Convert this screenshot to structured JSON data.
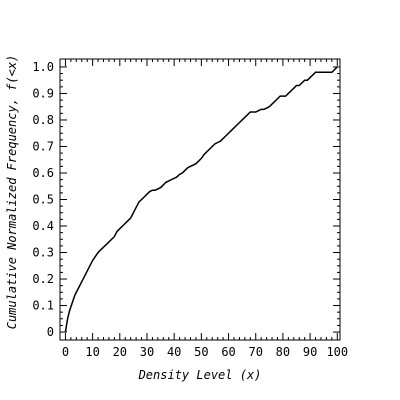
{
  "chart_data": {
    "type": "line",
    "xlabel": "Density Level (x)",
    "ylabel": "Cumulative Normalized Frequency, f(<x)",
    "xlim": [
      -2,
      101
    ],
    "ylim": [
      -0.03,
      1.03
    ],
    "x_ticks": [
      0,
      10,
      20,
      30,
      40,
      50,
      60,
      70,
      80,
      90,
      100
    ],
    "y_ticks": [
      0,
      0.1,
      0.2,
      0.3,
      0.4,
      0.5,
      0.6,
      0.7,
      0.8,
      0.9,
      1.0
    ],
    "x_tick_labels": [
      "0",
      "10",
      "20",
      "30",
      "40",
      "50",
      "60",
      "70",
      "80",
      "90",
      "100"
    ],
    "y_tick_labels": [
      "0",
      "0.1",
      "0.2",
      "0.3",
      "0.4",
      "0.5",
      "0.6",
      "0.7",
      "0.8",
      "0.9",
      "1.0"
    ],
    "grid": false,
    "line_color": "#000000",
    "series": [
      {
        "x": [
          0,
          0.3,
          0.8,
          1.5,
          2.5,
          3.5,
          5,
          6.5,
          8,
          10,
          12,
          14,
          16,
          18,
          19,
          20,
          21,
          22,
          23,
          24,
          25,
          26,
          27,
          28,
          29,
          30,
          31,
          32,
          33,
          34,
          35,
          36,
          37,
          38,
          39,
          40,
          41,
          42,
          43,
          44,
          45,
          46,
          47,
          48,
          49,
          50,
          51,
          52,
          53,
          54,
          55,
          56,
          57,
          58,
          59,
          60,
          61,
          62,
          63,
          64,
          65,
          66,
          67,
          68,
          69,
          70,
          71,
          72,
          73,
          74,
          75,
          76,
          77,
          78,
          79,
          80,
          81,
          82,
          83,
          84,
          85,
          86,
          87,
          88,
          89,
          90,
          91,
          92,
          93,
          94,
          95,
          96,
          97,
          98,
          99,
          100
        ],
        "y": [
          0,
          0.02,
          0.05,
          0.08,
          0.11,
          0.14,
          0.17,
          0.2,
          0.23,
          0.27,
          0.3,
          0.32,
          0.34,
          0.36,
          0.38,
          0.39,
          0.4,
          0.41,
          0.42,
          0.43,
          0.45,
          0.47,
          0.49,
          0.5,
          0.51,
          0.52,
          0.53,
          0.535,
          0.535,
          0.54,
          0.545,
          0.555,
          0.565,
          0.57,
          0.575,
          0.58,
          0.585,
          0.595,
          0.6,
          0.61,
          0.62,
          0.625,
          0.63,
          0.635,
          0.645,
          0.655,
          0.67,
          0.68,
          0.69,
          0.7,
          0.71,
          0.715,
          0.72,
          0.73,
          0.74,
          0.75,
          0.76,
          0.77,
          0.78,
          0.79,
          0.8,
          0.81,
          0.82,
          0.83,
          0.83,
          0.83,
          0.835,
          0.84,
          0.84,
          0.845,
          0.85,
          0.86,
          0.87,
          0.88,
          0.89,
          0.89,
          0.89,
          0.9,
          0.91,
          0.92,
          0.93,
          0.93,
          0.94,
          0.95,
          0.95,
          0.96,
          0.97,
          0.98,
          0.98,
          0.98,
          0.98,
          0.98,
          0.98,
          0.98,
          0.99,
          1.0
        ]
      }
    ]
  }
}
